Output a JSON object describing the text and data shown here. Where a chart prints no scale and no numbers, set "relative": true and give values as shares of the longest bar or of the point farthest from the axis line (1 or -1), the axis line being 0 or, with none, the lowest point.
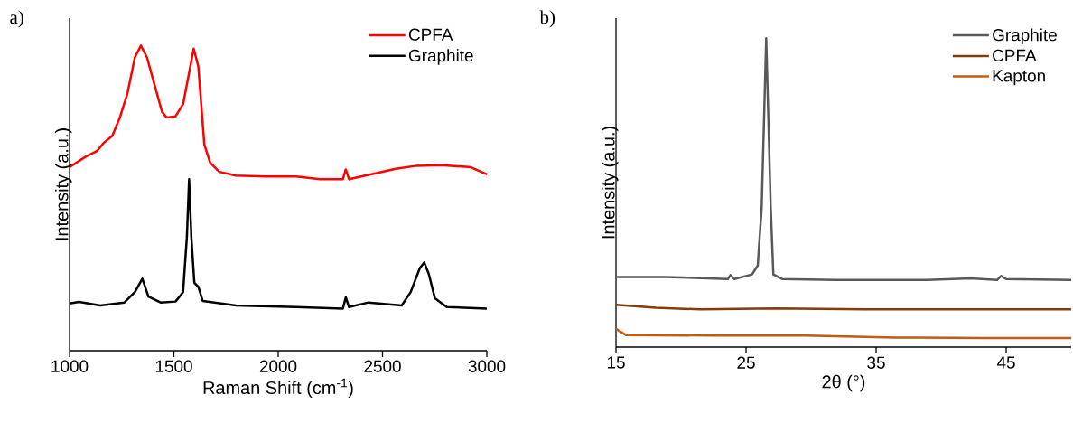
{
  "chart_data": [
    {
      "type": "line",
      "relative": true,
      "xlabel": "Raman Shift (cm$^{-1}$)",
      "ylabel": "Intensity (a.u.)",
      "annotations": [
        "a)"
      ],
      "xlim": [
        1000,
        3000
      ],
      "xticks": [
        1000,
        1500,
        2000,
        2500,
        3000
      ],
      "legend": "top right",
      "series": [
        {
          "name": "CPFA",
          "color": "#ff0000",
          "x": [
            1000,
            1075,
            1133,
            1162,
            1205,
            1241,
            1277,
            1313,
            1342,
            1371,
            1407,
            1443,
            1465,
            1508,
            1544,
            1573,
            1595,
            1617,
            1646,
            1674,
            1718,
            1797,
            1942,
            2086,
            2201,
            2310,
            2324,
            2339,
            2447,
            2563,
            2664,
            2780,
            2924,
            3000
          ],
          "values": [
            0.601,
            0.635,
            0.655,
            0.68,
            0.704,
            0.764,
            0.842,
            0.961,
            1.0,
            0.961,
            0.872,
            0.783,
            0.764,
            0.768,
            0.808,
            0.911,
            0.99,
            0.931,
            0.675,
            0.616,
            0.586,
            0.574,
            0.571,
            0.571,
            0.562,
            0.562,
            0.594,
            0.562,
            0.578,
            0.596,
            0.606,
            0.608,
            0.601,
            0.578
          ]
        },
        {
          "name": "Graphite",
          "color": "#000000",
          "x": [
            1000,
            1046,
            1147,
            1263,
            1313,
            1349,
            1378,
            1436,
            1508,
            1544,
            1562,
            1573,
            1584,
            1598,
            1617,
            1638,
            1797,
            2086,
            2310,
            2324,
            2339,
            2433,
            2592,
            2635,
            2679,
            2700,
            2722,
            2751,
            2808,
            3000
          ],
          "values": [
            0.155,
            0.16,
            0.148,
            0.158,
            0.192,
            0.236,
            0.177,
            0.158,
            0.161,
            0.192,
            0.369,
            0.562,
            0.369,
            0.222,
            0.21,
            0.163,
            0.148,
            0.143,
            0.138,
            0.175,
            0.143,
            0.158,
            0.148,
            0.192,
            0.271,
            0.289,
            0.251,
            0.172,
            0.143,
            0.138
          ]
        }
      ]
    },
    {
      "type": "line",
      "relative": true,
      "xlabel": "2θ (°)",
      "ylabel": "Intensity (a.u.)",
      "annotations": [
        "b)"
      ],
      "xlim": [
        15,
        50
      ],
      "xticks": [
        15,
        25,
        35,
        45
      ],
      "legend": "top right",
      "series": [
        {
          "name": "Graphite",
          "color": "#595959",
          "x": [
            15,
            18.76,
            23.6,
            23.8,
            24.1,
            25.46,
            25.9,
            26.2,
            26.55,
            26.9,
            27.1,
            27.8,
            31.9,
            38.9,
            42.3,
            44.3,
            44.6,
            45.0,
            50
          ],
          "values": [
            0.227,
            0.227,
            0.22,
            0.233,
            0.22,
            0.235,
            0.264,
            0.45,
            1.0,
            0.45,
            0.235,
            0.22,
            0.217,
            0.217,
            0.222,
            0.217,
            0.23,
            0.22,
            0.217
          ]
        },
        {
          "name": "CPFA",
          "color": "#843c0c",
          "x": [
            15,
            18.07,
            21.5,
            27.3,
            34.2,
            50
          ],
          "values": [
            0.137,
            0.127,
            0.122,
            0.125,
            0.122,
            0.122
          ]
        },
        {
          "name": "Kapton",
          "color": "#c55a11",
          "x": [
            15,
            15.76,
            22.7,
            29.6,
            36.5,
            43.5,
            50
          ],
          "values": [
            0.059,
            0.039,
            0.037,
            0.037,
            0.031,
            0.029,
            0.029
          ]
        }
      ]
    }
  ]
}
